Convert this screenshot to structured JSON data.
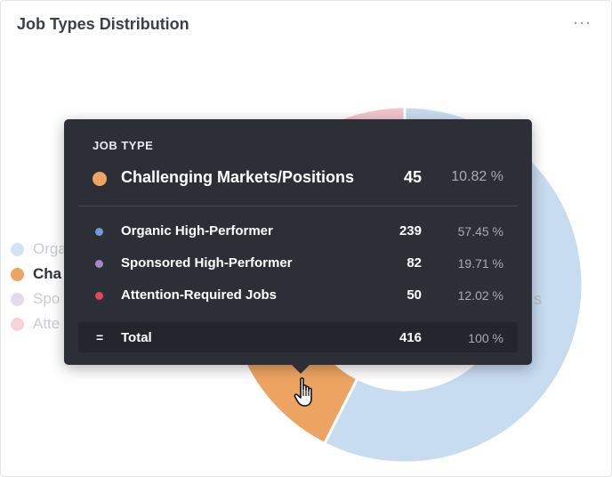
{
  "card": {
    "title": "Job Types Distribution",
    "menu_label": "···"
  },
  "chart_data": {
    "type": "pie",
    "variant": "donut",
    "title": "Job Types Distribution",
    "categories": [
      "Organic High-Performer",
      "Challenging Markets/Positions",
      "Sponsored High-Performer",
      "Attention-Required Jobs"
    ],
    "values": [
      239,
      45,
      82,
      50
    ],
    "percentages": [
      57.45,
      10.82,
      19.71,
      12.02
    ],
    "colors": [
      "#c8dcf0",
      "#eda462",
      "#dcd0e8",
      "#f0c4cc"
    ],
    "hovered_index": 1,
    "legend_position": "left",
    "legend_labels": [
      "Orga",
      "Cha",
      "Spo",
      "Atte"
    ]
  },
  "tooltip": {
    "header": "JOB TYPE",
    "main": {
      "name": "Challenging Markets/Positions",
      "count": "45",
      "pct": "10.82 %",
      "color": "#eda462"
    },
    "rows": [
      {
        "name": "Organic High-Performer",
        "count": "239",
        "pct": "57.45 %",
        "color": "#6b9fd6"
      },
      {
        "name": "Sponsored High-Performer",
        "count": "82",
        "pct": "19.71 %",
        "color": "#a885c9"
      },
      {
        "name": "Attention-Required Jobs",
        "count": "50",
        "pct": "12.02 %",
        "color": "#e04a55"
      }
    ],
    "total": {
      "symbol": "=",
      "name": "Total",
      "count": "416",
      "pct": "100 %"
    }
  },
  "chart_visible_fragment": "s"
}
